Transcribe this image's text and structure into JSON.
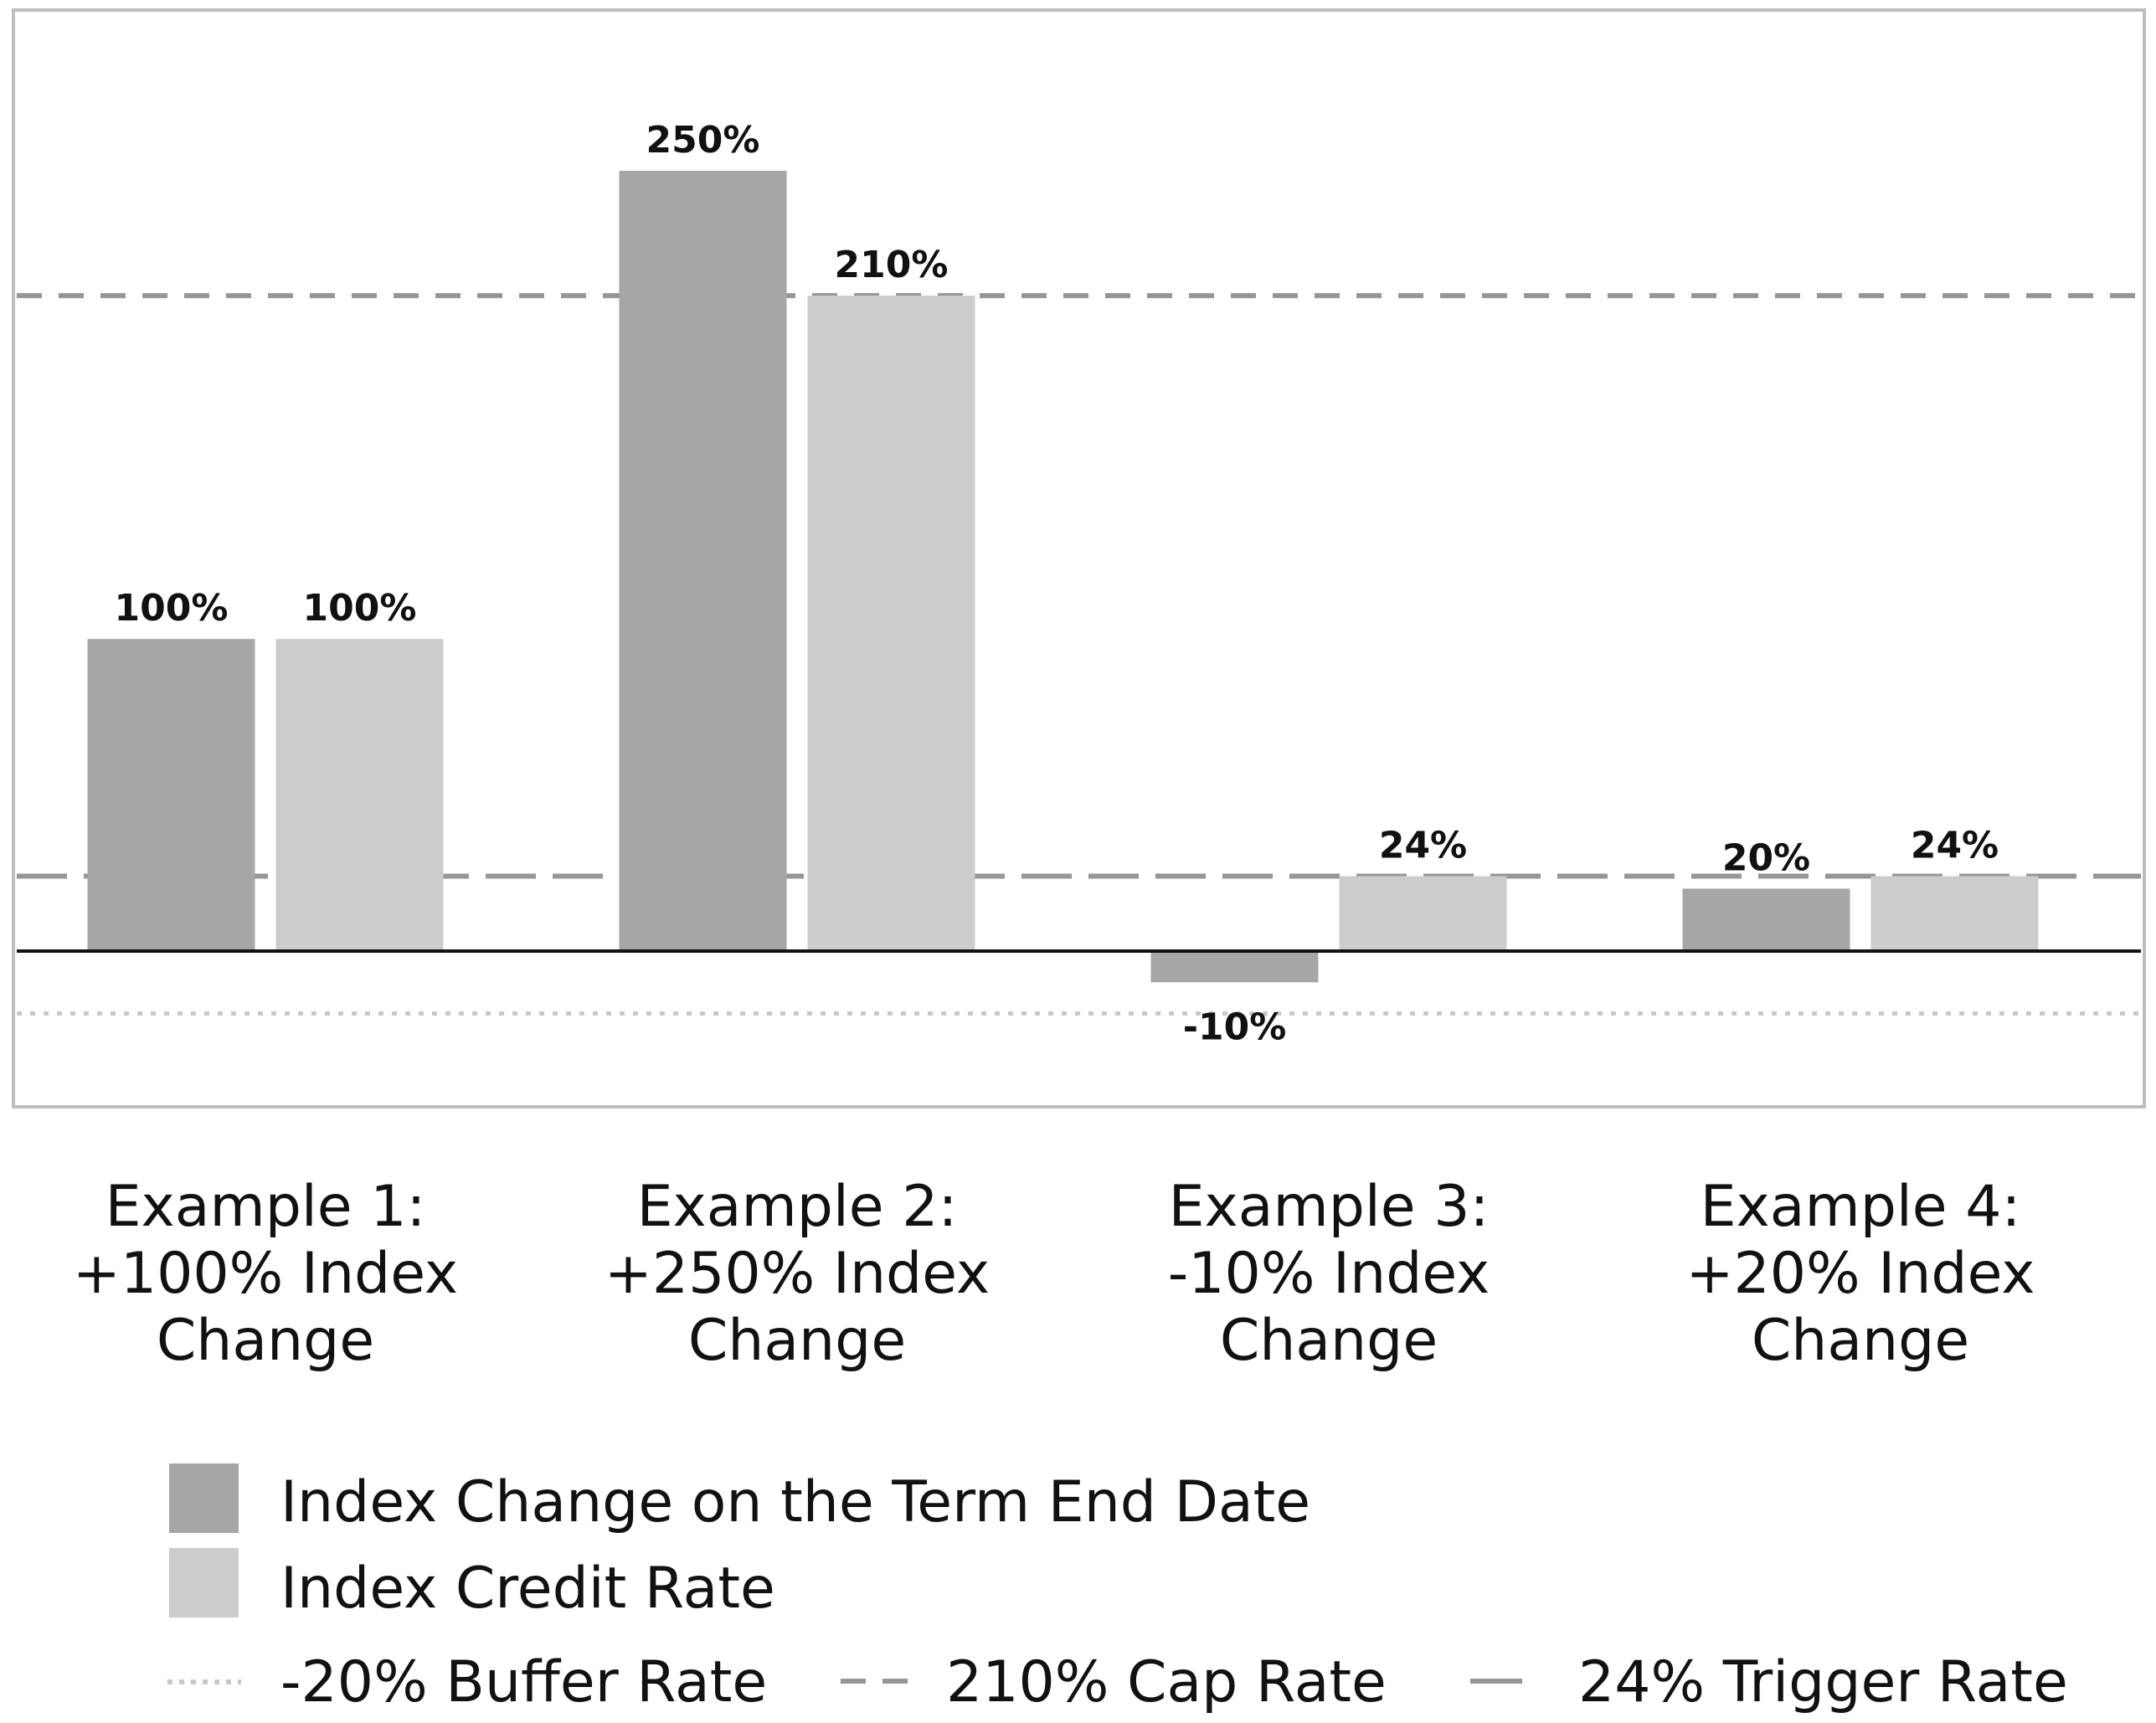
{
  "chart_data": {
    "type": "bar",
    "categories": [
      "Example 1: +100% Index Change",
      "Example 2: +250% Index Change",
      "Example 3: -10% Index Change",
      "Example 4: +20% Index Change"
    ],
    "category_lines": [
      [
        "Example 1:",
        "+100% Index",
        "Change"
      ],
      [
        "Example 2:",
        "+250% Index",
        "Change"
      ],
      [
        "Example 3:",
        "-10% Index",
        "Change"
      ],
      [
        "Example 4:",
        "+20% Index",
        "Change"
      ]
    ],
    "series": [
      {
        "name": "Index Change on the Term End Date",
        "values": [
          100,
          250,
          -10,
          20
        ],
        "labels": [
          "100%",
          "250%",
          "-10%",
          "20%"
        ],
        "color": "#a6a6a6"
      },
      {
        "name": "Index Credit Rate",
        "values": [
          100,
          210,
          24,
          24
        ],
        "labels": [
          "100%",
          "210%",
          "24%",
          "24%"
        ],
        "color": "#cccccc"
      }
    ],
    "reference_lines": [
      {
        "name": "-20% Buffer Rate",
        "value": -20,
        "style": "dotted",
        "color": "#c8c8c8"
      },
      {
        "name": "210% Cap Rate",
        "value": 210,
        "style": "short-dash",
        "color": "#969696"
      },
      {
        "name": "24% Trigger Rate",
        "value": 24,
        "style": "long-dash",
        "color": "#969696"
      }
    ],
    "ylim": [
      -50,
      300
    ],
    "grid": false,
    "legend_position": "bottom",
    "title": "",
    "xlabel": "",
    "ylabel": ""
  }
}
